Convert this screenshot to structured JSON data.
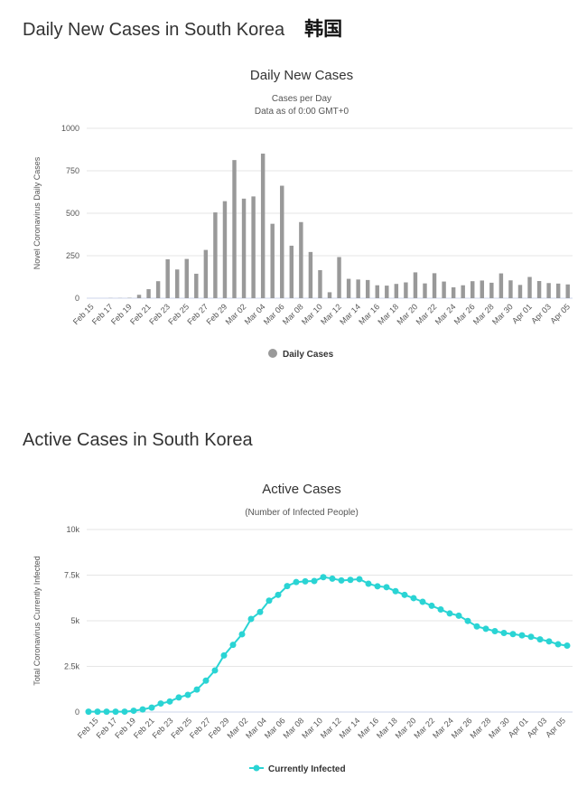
{
  "sections": {
    "daily_title": "Daily New Cases in South Korea",
    "daily_title_cn": "韩国",
    "active_title": "Active Cases in South Korea"
  },
  "chart_data": [
    {
      "type": "bar",
      "title": "Daily New Cases",
      "subtitle_1": "Cases per Day",
      "subtitle_2": "Data as of 0:00 GMT+0",
      "ylabel": "Novel Coronavirus Daily Cases",
      "ylim": [
        0,
        1000
      ],
      "yticks": [
        0,
        250,
        500,
        750,
        1000
      ],
      "ytick_labels": [
        "0",
        "250",
        "500",
        "750",
        "1000"
      ],
      "x_tick_labels": [
        "Feb 15",
        "Feb 17",
        "Feb 19",
        "Feb 21",
        "Feb 23",
        "Feb 25",
        "Feb 27",
        "Feb 29",
        "Mar 02",
        "Mar 04",
        "Mar 06",
        "Mar 08",
        "Mar 10",
        "Mar 12",
        "Mar 14",
        "Mar 16",
        "Mar 18",
        "Mar 20",
        "Mar 22",
        "Mar 24",
        "Mar 26",
        "Mar 28",
        "Mar 30",
        "Apr 01",
        "Apr 03",
        "Apr 05"
      ],
      "categories": [
        "Feb 15",
        "Feb 16",
        "Feb 17",
        "Feb 18",
        "Feb 19",
        "Feb 20",
        "Feb 21",
        "Feb 22",
        "Feb 23",
        "Feb 24",
        "Feb 25",
        "Feb 26",
        "Feb 27",
        "Feb 28",
        "Feb 29",
        "Mar 01",
        "Mar 02",
        "Mar 03",
        "Mar 04",
        "Mar 05",
        "Mar 06",
        "Mar 07",
        "Mar 08",
        "Mar 09",
        "Mar 10",
        "Mar 11",
        "Mar 12",
        "Mar 13",
        "Mar 14",
        "Mar 15",
        "Mar 16",
        "Mar 17",
        "Mar 18",
        "Mar 19",
        "Mar 20",
        "Mar 21",
        "Mar 22",
        "Mar 23",
        "Mar 24",
        "Mar 25",
        "Mar 26",
        "Mar 27",
        "Mar 28",
        "Mar 29",
        "Mar 30",
        "Mar 31",
        "Apr 01",
        "Apr 02",
        "Apr 03",
        "Apr 04",
        "Apr 05"
      ],
      "series": [
        {
          "name": "Daily Cases",
          "color": "#999999",
          "values": [
            0,
            0,
            1,
            1,
            2,
            20,
            53,
            100,
            229,
            169,
            231,
            144,
            284,
            505,
            571,
            813,
            586,
            599,
            851,
            438,
            662,
            309,
            448,
            272,
            165,
            35,
            242,
            114,
            110,
            107,
            76,
            74,
            84,
            93,
            152,
            87,
            147,
            98,
            64,
            76,
            100,
            104,
            91,
            146,
            105,
            78,
            125,
            101,
            89,
            86,
            81
          ]
        }
      ],
      "legend": "bottom-center",
      "grid": true
    },
    {
      "type": "line",
      "title": "Active Cases",
      "subtitle_1": "(Number of Infected People)",
      "ylabel": "Total Coronavirus Currently Infected",
      "ylim": [
        0,
        10000
      ],
      "yticks": [
        0,
        2500,
        5000,
        7500,
        10000
      ],
      "ytick_labels": [
        "0",
        "2.5k",
        "5k",
        "7.5k",
        "10k"
      ],
      "x_tick_labels": [
        "Feb 15",
        "Feb 17",
        "Feb 19",
        "Feb 21",
        "Feb 23",
        "Feb 25",
        "Feb 27",
        "Feb 29",
        "Mar 02",
        "Mar 04",
        "Mar 06",
        "Mar 08",
        "Mar 10",
        "Mar 12",
        "Mar 14",
        "Mar 16",
        "Mar 18",
        "Mar 20",
        "Mar 22",
        "Mar 24",
        "Mar 26",
        "Mar 28",
        "Mar 30",
        "Apr 01",
        "Apr 03",
        "Apr 05"
      ],
      "series": [
        {
          "name": "Currently Infected",
          "color": "#2ad4d4",
          "values": [
            18,
            18,
            18,
            19,
            21,
            70,
            142,
            242,
            466,
            578,
            800,
            940,
            1230,
            1720,
            2280,
            3100,
            3680,
            4260,
            5100,
            5480,
            6100,
            6420,
            6900,
            7120,
            7160,
            7180,
            7390,
            7310,
            7210,
            7240,
            7280,
            7030,
            6890,
            6840,
            6620,
            6420,
            6240,
            6040,
            5820,
            5620,
            5400,
            5280,
            4990,
            4690,
            4560,
            4430,
            4330,
            4270,
            4200,
            4120,
            3980,
            3870,
            3710,
            3640
          ]
        }
      ],
      "legend": "bottom-center",
      "grid": true
    }
  ]
}
